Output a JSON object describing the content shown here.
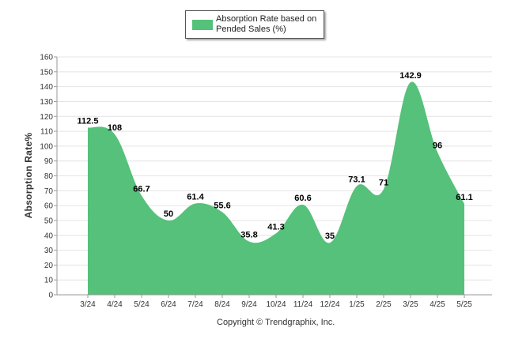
{
  "chart_data": {
    "type": "area",
    "categories": [
      "3/24",
      "4/24",
      "5/24",
      "6/24",
      "7/24",
      "8/24",
      "9/24",
      "10/24",
      "11/24",
      "12/24",
      "1/25",
      "2/25",
      "3/25",
      "4/25",
      "5/25"
    ],
    "series": [
      {
        "name": "Absorption Rate based on Pended Sales (%)",
        "values": [
          112.5,
          108,
          66.7,
          50,
          61.4,
          55.6,
          35.8,
          41.3,
          60.6,
          35,
          73.1,
          71,
          142.9,
          96,
          61.1
        ],
        "color": "#55c17a"
      }
    ],
    "data_labels": [
      "112.5",
      "108",
      "66.7",
      "50",
      "61.4",
      "55.6",
      "35.8",
      "41.3",
      "60.6",
      "35",
      "73.1",
      "71",
      "142.9",
      "96",
      "61.1"
    ],
    "ylabel": "Absorption Rate%",
    "xlabel": "",
    "ylim": [
      0,
      160
    ],
    "yticks": [
      "0",
      "10",
      "20",
      "30",
      "40",
      "50",
      "60",
      "70",
      "80",
      "90",
      "100",
      "110",
      "120",
      "130",
      "140",
      "150",
      "160"
    ],
    "grid": true,
    "legend_position": "top-center"
  },
  "legend": {
    "label": "Absorption Rate based on Pended Sales (%)"
  },
  "copyright": "Copyright © Trendgraphix, Inc.",
  "colors": {
    "series": "#55c17a",
    "grid": "#e4e4e4",
    "axis": "#999999"
  }
}
